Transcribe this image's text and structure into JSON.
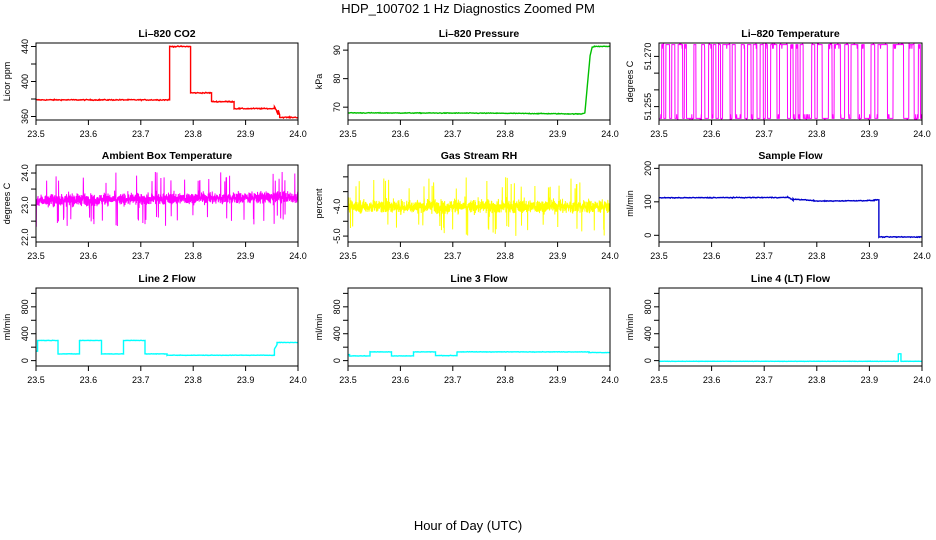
{
  "title": "HDP_100702  1 Hz Diagnostics Zoomed PM",
  "xlabel": "Hour of Day (UTC)",
  "chart_data": [
    {
      "type": "line",
      "title": "Li–820 CO2",
      "ylabel": "Licor ppm",
      "color": "#ff0000",
      "xlim": [
        23.5,
        24.0
      ],
      "ylim": [
        356,
        444
      ],
      "yticks": [
        360,
        380,
        400,
        420,
        440
      ],
      "yticklabels": [
        "360",
        "",
        "400",
        "",
        "440"
      ],
      "noise": 0.6,
      "series": [
        {
          "name": "Li–820 CO2",
          "x": [
            23.5,
            23.755,
            23.755,
            23.795,
            23.795,
            23.835,
            23.835,
            23.878,
            23.878,
            23.955,
            23.955,
            23.962,
            23.962,
            23.965,
            23.965,
            24.0
          ],
          "y": [
            379,
            379,
            440,
            440,
            387,
            387,
            377,
            377,
            369,
            369,
            372,
            362,
            368,
            362,
            359,
            359
          ]
        }
      ]
    },
    {
      "type": "line",
      "title": "Li–820 Pressure",
      "ylabel": "kPa",
      "color": "#00c000",
      "xlim": [
        23.5,
        24.0
      ],
      "ylim": [
        65.5,
        92.5
      ],
      "yticks": [
        70,
        80,
        90
      ],
      "yticklabels": [
        "70",
        "80",
        "90"
      ],
      "noise": 0.12,
      "series": [
        {
          "name": "Li–820 Pressure",
          "x": [
            23.5,
            23.76,
            23.9,
            23.945,
            23.952,
            23.958,
            23.962,
            23.966,
            23.97,
            24.0
          ],
          "y": [
            68.0,
            67.9,
            67.7,
            67.6,
            68.0,
            80,
            88,
            91,
            91.3,
            91.3
          ]
        }
      ]
    },
    {
      "type": "line",
      "title": "Li–820 Temperature",
      "ylabel": "degrees C",
      "color": "#ff00ff",
      "xlim": [
        23.5,
        24.0
      ],
      "ylim": [
        51.251,
        51.274
      ],
      "yticks": [
        51.255,
        51.26,
        51.265,
        51.27
      ],
      "yticklabels": [
        "51.255",
        "",
        "",
        "51.270"
      ],
      "series": [
        {
          "name": "Li–820 Temperature",
          "x": [],
          "y": []
        }
      ],
      "toggle": {
        "low": 51.2515,
        "high": 51.2735,
        "step": 0.0012,
        "xs": [
          23.505,
          23.509,
          23.513,
          23.52,
          23.524,
          23.53,
          23.536,
          23.545,
          23.548,
          23.552,
          23.566,
          23.57,
          23.581,
          23.587,
          23.594,
          23.6,
          23.603,
          23.608,
          23.613,
          23.617,
          23.621,
          23.635,
          23.639,
          23.645,
          23.656,
          23.663,
          23.668,
          23.675,
          23.679,
          23.686,
          23.692,
          23.698,
          23.702,
          23.706,
          23.712,
          23.724,
          23.729,
          23.744,
          23.75,
          23.755,
          23.76,
          23.764,
          23.768,
          23.774,
          23.79,
          23.796,
          23.801,
          23.81,
          23.822,
          23.829,
          23.833,
          23.845,
          23.853,
          23.86,
          23.865,
          23.878,
          23.885,
          23.89,
          23.903,
          23.91,
          23.916,
          23.934,
          23.945,
          23.965,
          23.975,
          23.985,
          23.993,
          23.997
        ]
      }
    },
    {
      "type": "line",
      "title": "Ambient Box Temperature",
      "ylabel": "degrees C",
      "color": "#ff00ff",
      "xlim": [
        23.5,
        24.0
      ],
      "ylim": [
        21.85,
        24.25
      ],
      "yticks": [
        22.0,
        22.5,
        23.0,
        23.5,
        24.0
      ],
      "yticklabels": [
        "22.0",
        "",
        "23.0",
        "",
        "24.0"
      ],
      "series": [
        {
          "name": "Ambient Box Temperature",
          "x": [
            23.5,
            24.0
          ],
          "y": [
            23.15,
            23.25
          ]
        }
      ],
      "noise_band": {
        "mean": 23.2,
        "amp": 0.32,
        "spike": 0.85,
        "n": 1800
      }
    },
    {
      "type": "line",
      "title": "Gas Stream RH",
      "ylabel": "percent",
      "color": "#ffff00",
      "xlim": [
        23.5,
        24.0
      ],
      "ylim": [
        -5.2,
        -2.6
      ],
      "yticks": [
        -5.0,
        -4.5,
        -4.0,
        -3.5,
        -3.0
      ],
      "yticklabels": [
        "-5.0",
        "",
        "-4.0",
        "",
        ""
      ],
      "series": [
        {
          "name": "Gas Stream RH",
          "x": [
            23.5,
            24.0
          ],
          "y": [
            -4.0,
            -4.0
          ]
        }
      ],
      "noise_band": {
        "mean": -3.95,
        "amp": 0.4,
        "spike": 1.0,
        "n": 1800
      }
    },
    {
      "type": "line",
      "title": "Sample Flow",
      "ylabel": "ml/min",
      "color": "#0000cc",
      "xlim": [
        23.5,
        24.0
      ],
      "ylim": [
        -20,
        210
      ],
      "yticks": [
        0,
        100,
        200
      ],
      "yticklabels": [
        "0",
        "100",
        "200"
      ],
      "noise": 1.2,
      "series": [
        {
          "name": "Sample Flow",
          "x": [
            23.5,
            23.745,
            23.745,
            23.755,
            23.755,
            23.795,
            23.795,
            23.91,
            23.91,
            23.918,
            23.918,
            24.0
          ],
          "y": [
            112,
            113,
            115,
            104,
            108,
            104,
            102,
            104,
            106,
            106,
            -5,
            -5
          ]
        }
      ]
    },
    {
      "type": "line",
      "title": "Line 2 Flow",
      "ylabel": "ml/min",
      "color": "#00ffff",
      "xlim": [
        23.5,
        24.0
      ],
      "ylim": [
        -80,
        1080
      ],
      "yticks": [
        0,
        200,
        400,
        600,
        800,
        1000
      ],
      "yticklabels": [
        "0",
        "",
        "400",
        "",
        "800",
        ""
      ],
      "noise": 3,
      "series": [
        {
          "name": "Line 2 Flow",
          "x": [
            23.5,
            23.503,
            23.503,
            23.542,
            23.542,
            23.583,
            23.583,
            23.625,
            23.625,
            23.667,
            23.667,
            23.708,
            23.708,
            23.75,
            23.75,
            23.955,
            23.955,
            23.96,
            23.96,
            24.0
          ],
          "y": [
            140,
            140,
            300,
            300,
            100,
            100,
            300,
            300,
            100,
            100,
            300,
            300,
            100,
            100,
            80,
            80,
            170,
            240,
            270,
            270
          ]
        }
      ]
    },
    {
      "type": "line",
      "title": "Line 3 Flow",
      "ylabel": "ml/min",
      "color": "#00ffff",
      "xlim": [
        23.5,
        24.0
      ],
      "ylim": [
        -80,
        1080
      ],
      "yticks": [
        0,
        200,
        400,
        600,
        800,
        1000
      ],
      "yticklabels": [
        "0",
        "",
        "400",
        "",
        "800",
        ""
      ],
      "noise": 3,
      "series": [
        {
          "name": "Line 3 Flow",
          "x": [
            23.5,
            23.503,
            23.503,
            23.542,
            23.542,
            23.583,
            23.583,
            23.625,
            23.625,
            23.667,
            23.667,
            23.708,
            23.708,
            23.96,
            23.96,
            24.0
          ],
          "y": [
            90,
            90,
            70,
            70,
            130,
            130,
            70,
            70,
            130,
            130,
            75,
            75,
            130,
            130,
            120,
            120
          ]
        }
      ]
    },
    {
      "type": "line",
      "title": "Line 4 (LT) Flow",
      "ylabel": "ml/min",
      "color": "#00ffff",
      "xlim": [
        23.5,
        24.0
      ],
      "ylim": [
        -80,
        1080
      ],
      "yticks": [
        0,
        200,
        400,
        600,
        800,
        1000
      ],
      "yticklabels": [
        "0",
        "",
        "400",
        "",
        "800",
        ""
      ],
      "noise": 2,
      "series": [
        {
          "name": "Line 4 (LT) Flow",
          "x": [
            23.5,
            23.955,
            23.955,
            23.96,
            23.96,
            24.0
          ],
          "y": [
            -10,
            -10,
            100,
            100,
            -10,
            -10
          ]
        }
      ]
    }
  ],
  "xticks": [
    23.5,
    23.6,
    23.7,
    23.8,
    23.9,
    24.0
  ],
  "xticklabels": [
    "23.5",
    "23.6",
    "23.7",
    "23.8",
    "23.9",
    "24.0"
  ]
}
